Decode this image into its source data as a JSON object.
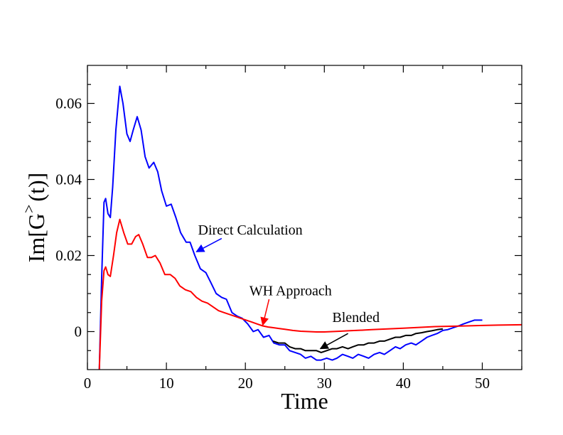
{
  "chart_data": {
    "type": "line",
    "title": "",
    "xlabel": "Time",
    "ylabel_main": "Im[G",
    "ylabel_sup": ">",
    "ylabel_tail": "(t)]",
    "xlim": [
      0,
      55
    ],
    "ylim": [
      -0.01,
      0.07
    ],
    "xticks": [
      0,
      10,
      20,
      30,
      40,
      50
    ],
    "xtick_labels": [
      "0",
      "10",
      "20",
      "30",
      "40",
      "50"
    ],
    "yticks": [
      0,
      0.02,
      0.04,
      0.06
    ],
    "ytick_labels": [
      "0",
      "0.02",
      "0.04",
      "0.06"
    ],
    "series": [
      {
        "name": "Direct Calculation",
        "color": "#0000ff",
        "points": [
          [
            1.5,
            -0.01
          ],
          [
            1.8,
            0.014
          ],
          [
            2.1,
            0.034
          ],
          [
            2.3,
            0.035
          ],
          [
            2.6,
            0.031
          ],
          [
            2.9,
            0.03
          ],
          [
            3.2,
            0.038
          ],
          [
            3.6,
            0.053
          ],
          [
            4.1,
            0.0645
          ],
          [
            4.5,
            0.06
          ],
          [
            5.0,
            0.052
          ],
          [
            5.4,
            0.05
          ],
          [
            5.8,
            0.053
          ],
          [
            6.3,
            0.0565
          ],
          [
            6.8,
            0.053
          ],
          [
            7.3,
            0.046
          ],
          [
            7.8,
            0.043
          ],
          [
            8.4,
            0.0445
          ],
          [
            8.9,
            0.042
          ],
          [
            9.4,
            0.037
          ],
          [
            10.0,
            0.033
          ],
          [
            10.6,
            0.0335
          ],
          [
            11.2,
            0.03
          ],
          [
            11.8,
            0.026
          ],
          [
            12.5,
            0.0235
          ],
          [
            13.0,
            0.0235
          ],
          [
            13.6,
            0.02
          ],
          [
            14.3,
            0.0165
          ],
          [
            15.0,
            0.0155
          ],
          [
            15.6,
            0.013
          ],
          [
            16.3,
            0.01
          ],
          [
            17.0,
            0.009
          ],
          [
            17.6,
            0.0085
          ],
          [
            18.3,
            0.005
          ],
          [
            19.0,
            0.004
          ],
          [
            19.6,
            0.0035
          ],
          [
            20.3,
            0.002
          ],
          [
            21.0,
            0.0
          ],
          [
            21.6,
            0.0005
          ],
          [
            22.3,
            -0.0015
          ],
          [
            23.0,
            -0.001
          ],
          [
            23.6,
            -0.003
          ],
          [
            24.3,
            -0.0035
          ],
          [
            25.0,
            -0.0035
          ],
          [
            25.6,
            -0.005
          ],
          [
            26.3,
            -0.0055
          ],
          [
            27.0,
            -0.006
          ],
          [
            27.6,
            -0.007
          ],
          [
            28.3,
            -0.0065
          ],
          [
            29.0,
            -0.0075
          ],
          [
            29.6,
            -0.0075
          ],
          [
            30.3,
            -0.007
          ],
          [
            31.0,
            -0.0075
          ],
          [
            31.6,
            -0.007
          ],
          [
            32.3,
            -0.006
          ],
          [
            33.0,
            -0.0065
          ],
          [
            33.6,
            -0.007
          ],
          [
            34.3,
            -0.006
          ],
          [
            35.0,
            -0.0065
          ],
          [
            35.6,
            -0.007
          ],
          [
            36.3,
            -0.006
          ],
          [
            37.0,
            -0.0055
          ],
          [
            37.6,
            -0.006
          ],
          [
            38.3,
            -0.005
          ],
          [
            39.0,
            -0.004
          ],
          [
            39.6,
            -0.0045
          ],
          [
            40.3,
            -0.0035
          ],
          [
            41.0,
            -0.003
          ],
          [
            41.6,
            -0.0035
          ],
          [
            42.3,
            -0.0025
          ],
          [
            43.0,
            -0.0015
          ],
          [
            43.6,
            -0.001
          ],
          [
            44.3,
            -0.0005
          ],
          [
            45.0,
            0.0003
          ],
          [
            45.6,
            0.0005
          ],
          [
            46.3,
            0.001
          ],
          [
            47.0,
            0.0015
          ],
          [
            47.6,
            0.002
          ],
          [
            48.3,
            0.0025
          ],
          [
            49.0,
            0.003
          ],
          [
            50.0,
            0.003
          ]
        ]
      },
      {
        "name": "WH Approach",
        "color": "#ff0000",
        "points": [
          [
            1.5,
            -0.01
          ],
          [
            1.8,
            0.008
          ],
          [
            2.1,
            0.016
          ],
          [
            2.3,
            0.017
          ],
          [
            2.6,
            0.015
          ],
          [
            2.9,
            0.0145
          ],
          [
            3.3,
            0.02
          ],
          [
            3.7,
            0.026
          ],
          [
            4.1,
            0.0295
          ],
          [
            4.6,
            0.026
          ],
          [
            5.1,
            0.023
          ],
          [
            5.6,
            0.023
          ],
          [
            6.1,
            0.025
          ],
          [
            6.5,
            0.0255
          ],
          [
            7.0,
            0.023
          ],
          [
            7.6,
            0.0195
          ],
          [
            8.1,
            0.0195
          ],
          [
            8.6,
            0.02
          ],
          [
            9.2,
            0.018
          ],
          [
            9.8,
            0.015
          ],
          [
            10.5,
            0.015
          ],
          [
            11.1,
            0.014
          ],
          [
            11.7,
            0.012
          ],
          [
            12.4,
            0.011
          ],
          [
            13.1,
            0.0105
          ],
          [
            13.8,
            0.009
          ],
          [
            14.5,
            0.008
          ],
          [
            15.2,
            0.0075
          ],
          [
            15.9,
            0.0065
          ],
          [
            16.6,
            0.0055
          ],
          [
            17.3,
            0.005
          ],
          [
            18.0,
            0.0045
          ],
          [
            18.7,
            0.004
          ],
          [
            19.4,
            0.0035
          ],
          [
            20.1,
            0.003
          ],
          [
            20.8,
            0.0025
          ],
          [
            21.5,
            0.002
          ],
          [
            22.2,
            0.0015
          ],
          [
            22.9,
            0.0012
          ],
          [
            23.6,
            0.001
          ],
          [
            24.3,
            0.0008
          ],
          [
            25.0,
            0.0006
          ],
          [
            26.0,
            0.0003
          ],
          [
            27.0,
            0.0001
          ],
          [
            28.0,
            0.0
          ],
          [
            29.0,
            -0.0001
          ],
          [
            30.0,
            -0.0001
          ],
          [
            31.0,
            0.0
          ],
          [
            32.0,
            0.0001
          ],
          [
            33.0,
            0.0002
          ],
          [
            34.0,
            0.0003
          ],
          [
            35.0,
            0.0004
          ],
          [
            36.0,
            0.0005
          ],
          [
            38.0,
            0.0007
          ],
          [
            40.0,
            0.0009
          ],
          [
            42.0,
            0.0011
          ],
          [
            44.0,
            0.0013
          ],
          [
            46.0,
            0.0014
          ],
          [
            48.0,
            0.0015
          ],
          [
            50.0,
            0.0016
          ],
          [
            52.0,
            0.0017
          ],
          [
            55.0,
            0.0018
          ]
        ]
      },
      {
        "name": "Blended",
        "color": "#000000",
        "points": [
          [
            23.5,
            -0.0025
          ],
          [
            24.2,
            -0.003
          ],
          [
            25.0,
            -0.003
          ],
          [
            25.6,
            -0.004
          ],
          [
            26.3,
            -0.0045
          ],
          [
            27.0,
            -0.0045
          ],
          [
            27.6,
            -0.005
          ],
          [
            28.3,
            -0.005
          ],
          [
            29.0,
            -0.005
          ],
          [
            29.6,
            -0.0055
          ],
          [
            30.3,
            -0.005
          ],
          [
            31.0,
            -0.0045
          ],
          [
            31.6,
            -0.0045
          ],
          [
            32.3,
            -0.004
          ],
          [
            33.0,
            -0.0045
          ],
          [
            33.6,
            -0.004
          ],
          [
            34.3,
            -0.0035
          ],
          [
            35.0,
            -0.0035
          ],
          [
            35.6,
            -0.003
          ],
          [
            36.3,
            -0.003
          ],
          [
            37.0,
            -0.0025
          ],
          [
            37.6,
            -0.0025
          ],
          [
            38.3,
            -0.002
          ],
          [
            39.0,
            -0.0015
          ],
          [
            39.6,
            -0.0015
          ],
          [
            40.3,
            -0.001
          ],
          [
            41.0,
            -0.001
          ],
          [
            41.6,
            -0.0005
          ],
          [
            42.3,
            -0.0003
          ],
          [
            43.0,
            0.0
          ],
          [
            43.6,
            0.0002
          ],
          [
            44.3,
            0.0005
          ],
          [
            45.0,
            0.0007
          ]
        ]
      }
    ],
    "annotations": [
      {
        "text": "Direct Calculation",
        "color": "#0000ff",
        "text_at": [
          14.0,
          0.0255
        ],
        "arrow_from": [
          17.0,
          0.0245
        ],
        "arrow_to": [
          13.8,
          0.021
        ]
      },
      {
        "text": "WH Approach",
        "color": "#ff0000",
        "text_at": [
          20.5,
          0.0095
        ],
        "arrow_from": [
          23.0,
          0.0085
        ],
        "arrow_to": [
          22.2,
          0.0017
        ]
      },
      {
        "text": "Blended",
        "color": "#000000",
        "text_at": [
          31.0,
          0.0025
        ],
        "arrow_from": [
          33.0,
          -0.0005
        ],
        "arrow_to": [
          29.5,
          -0.0045
        ]
      }
    ]
  }
}
